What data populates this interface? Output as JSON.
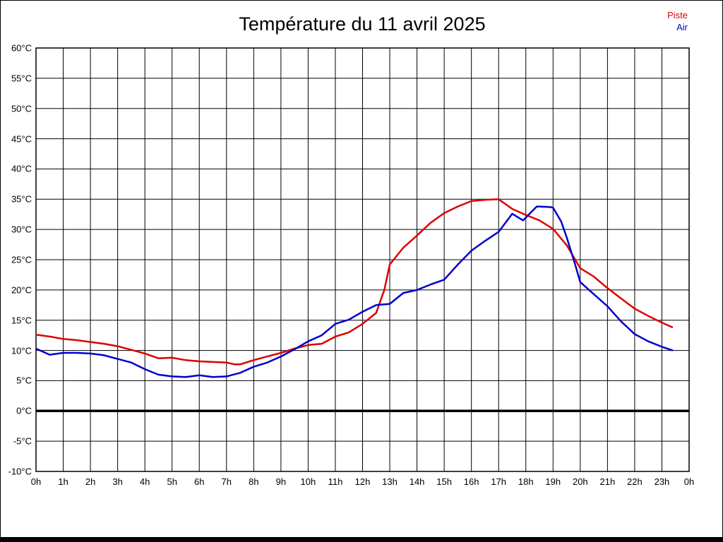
{
  "header": {
    "title": "Température du 11 avril 2025"
  },
  "legend": [
    {
      "label": "Piste",
      "color": "#dd0000"
    },
    {
      "label": "Air",
      "color": "#0000cc"
    }
  ],
  "chart_data": {
    "type": "line",
    "title": "Température du 11 avril 2025",
    "xlabel": "",
    "ylabel": "",
    "grid": true,
    "legend_position": "top-right",
    "xlim": [
      0,
      24
    ],
    "ylim": [
      -10,
      60
    ],
    "x_tick_values": [
      0,
      1,
      2,
      3,
      4,
      5,
      6,
      7,
      8,
      9,
      10,
      11,
      12,
      13,
      14,
      15,
      16,
      17,
      18,
      19,
      20,
      21,
      22,
      23,
      24
    ],
    "x_tick_labels": [
      "0h",
      "1h",
      "2h",
      "3h",
      "4h",
      "5h",
      "6h",
      "7h",
      "8h",
      "9h",
      "10h",
      "11h",
      "12h",
      "13h",
      "14h",
      "15h",
      "16h",
      "17h",
      "18h",
      "19h",
      "20h",
      "21h",
      "22h",
      "23h",
      "0h"
    ],
    "y_tick_values": [
      60,
      55,
      50,
      45,
      40,
      35,
      30,
      25,
      20,
      15,
      10,
      5,
      0,
      -5,
      -10
    ],
    "y_tick_labels": [
      "60°C",
      "55°C",
      "50°C",
      "45°C",
      "40°C",
      "35°C",
      "30°C",
      "25°C",
      "20°C",
      "15°C",
      "10°C",
      "5°C",
      "0°C",
      "-5°C",
      "-10°C"
    ],
    "zero_line_value": 0,
    "series": [
      {
        "name": "Piste",
        "color": "#dd0000",
        "points": [
          [
            0,
            12.6
          ],
          [
            0.5,
            12.3
          ],
          [
            1,
            11.9
          ],
          [
            1.5,
            11.7
          ],
          [
            2,
            11.4
          ],
          [
            2.5,
            11.1
          ],
          [
            3,
            10.7
          ],
          [
            3.5,
            10.1
          ],
          [
            4,
            9.5
          ],
          [
            4.5,
            8.7
          ],
          [
            5,
            8.8
          ],
          [
            5.5,
            8.4
          ],
          [
            6,
            8.2
          ],
          [
            6.5,
            8.1
          ],
          [
            7,
            8
          ],
          [
            7.3,
            7.7
          ],
          [
            7.5,
            7.7
          ],
          [
            8,
            8.4
          ],
          [
            8.5,
            9
          ],
          [
            9,
            9.6
          ],
          [
            9.5,
            10.3
          ],
          [
            10,
            10.9
          ],
          [
            10.5,
            11.1
          ],
          [
            11,
            12.3
          ],
          [
            11.5,
            13
          ],
          [
            12,
            14.4
          ],
          [
            12.5,
            16.2
          ],
          [
            12.8,
            20
          ],
          [
            13,
            24.2
          ],
          [
            13.5,
            27
          ],
          [
            14,
            29
          ],
          [
            14.5,
            31.1
          ],
          [
            15,
            32.7
          ],
          [
            15.5,
            33.8
          ],
          [
            16,
            34.7
          ],
          [
            16.5,
            34.9
          ],
          [
            17,
            35
          ],
          [
            17.5,
            33.4
          ],
          [
            18,
            32.4
          ],
          [
            18.5,
            31.5
          ],
          [
            19,
            30.1
          ],
          [
            19.5,
            27.4
          ],
          [
            20,
            23.6
          ],
          [
            20.5,
            22.2
          ],
          [
            21,
            20.3
          ],
          [
            21.5,
            18.6
          ],
          [
            22,
            16.9
          ],
          [
            22.5,
            15.7
          ],
          [
            23,
            14.6
          ],
          [
            23.4,
            13.8
          ]
        ]
      },
      {
        "name": "Air",
        "color": "#0000cc",
        "points": [
          [
            0,
            10.3
          ],
          [
            0.5,
            9.3
          ],
          [
            1,
            9.6
          ],
          [
            1.5,
            9.6
          ],
          [
            2,
            9.5
          ],
          [
            2.5,
            9.2
          ],
          [
            3,
            8.6
          ],
          [
            3.5,
            8
          ],
          [
            4,
            6.9
          ],
          [
            4.5,
            6
          ],
          [
            5,
            5.7
          ],
          [
            5.5,
            5.6
          ],
          [
            6,
            5.9
          ],
          [
            6.5,
            5.6
          ],
          [
            7,
            5.7
          ],
          [
            7.5,
            6.3
          ],
          [
            8,
            7.3
          ],
          [
            8.5,
            8
          ],
          [
            9,
            9
          ],
          [
            9.5,
            10.2
          ],
          [
            10,
            11.5
          ],
          [
            10.5,
            12.5
          ],
          [
            11,
            14.4
          ],
          [
            11.5,
            15.1
          ],
          [
            12,
            16.4
          ],
          [
            12.5,
            17.5
          ],
          [
            13,
            17.7
          ],
          [
            13.5,
            19.5
          ],
          [
            14,
            20
          ],
          [
            14.5,
            20.9
          ],
          [
            15,
            21.7
          ],
          [
            15.5,
            24.2
          ],
          [
            16,
            26.5
          ],
          [
            16.5,
            28.1
          ],
          [
            17,
            29.6
          ],
          [
            17.5,
            32.6
          ],
          [
            17.9,
            31.5
          ],
          [
            18.4,
            33.8
          ],
          [
            18.9,
            33.7
          ],
          [
            19,
            33.6
          ],
          [
            19.3,
            31.3
          ],
          [
            19.5,
            28.7
          ],
          [
            19.8,
            24.4
          ],
          [
            20,
            21.3
          ],
          [
            20.5,
            19.3
          ],
          [
            21,
            17.3
          ],
          [
            21.5,
            14.8
          ],
          [
            22,
            12.7
          ],
          [
            22.5,
            11.5
          ],
          [
            23,
            10.6
          ],
          [
            23.4,
            10
          ]
        ]
      }
    ]
  }
}
